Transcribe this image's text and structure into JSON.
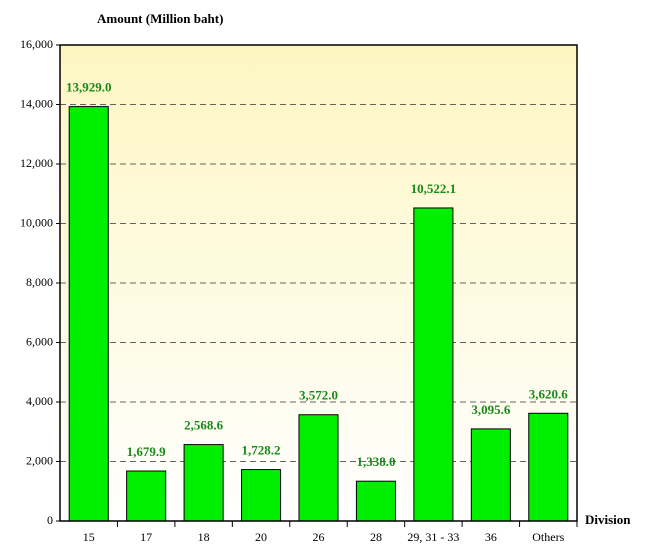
{
  "chart_data": {
    "type": "bar",
    "y_axis_label": "Amount (Million baht)",
    "x_axis_label": "Division",
    "categories": [
      "15",
      "17",
      "18",
      "20",
      "26",
      "28",
      "29, 31 - 33",
      "36",
      "Others"
    ],
    "values": [
      13929.0,
      1679.9,
      2568.6,
      1728.2,
      3572.0,
      1338.0,
      10522.1,
      3095.6,
      3620.6
    ],
    "value_labels": [
      "13,929.0",
      "1,679.9",
      "2,568.6",
      "1,728.2",
      "3,572.0",
      "1,338.0",
      "10,522.1",
      "3,095.6",
      "3,620.6"
    ],
    "color": "#00ee00",
    "label_color": "#1a8a1a",
    "ylim": [
      0,
      16000
    ],
    "yticks": [
      0,
      {
        "value": 2000,
        "label": "2,000"
      },
      {
        "value": 4000,
        "label": "4,000"
      },
      {
        "value": 6000,
        "label": "6,000"
      },
      {
        "value": 8000,
        "label": "8,000"
      },
      {
        "value": 10000,
        "label": "10,000"
      },
      {
        "value": 12000,
        "label": "12,000"
      },
      {
        "value": 14000,
        "label": "14,000"
      },
      {
        "value": 16000,
        "label": "16,000"
      }
    ],
    "grid": true
  }
}
